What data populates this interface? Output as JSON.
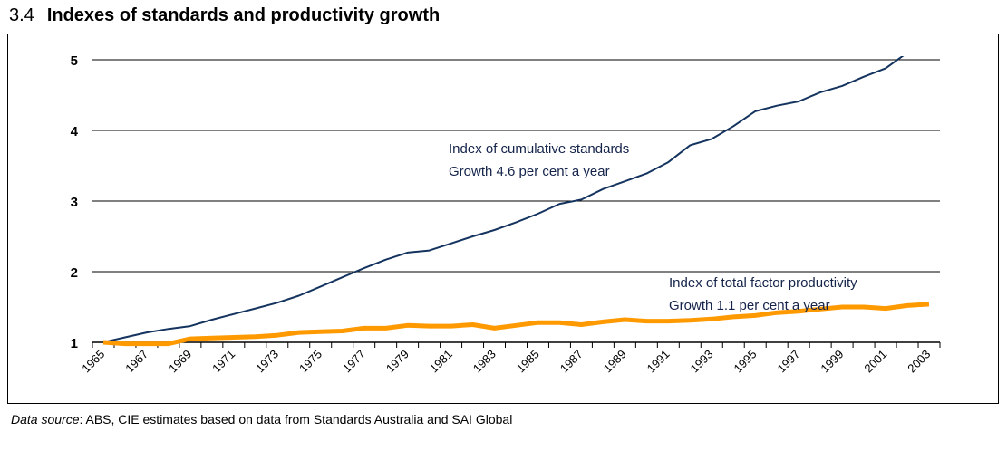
{
  "title": {
    "number": "3.4",
    "text": "Indexes of standards and productivity growth"
  },
  "source": {
    "label": "Data source",
    "text": ": ABS, CIE estimates based on data from Standards Australia and SAI Global"
  },
  "chart_data": {
    "type": "line",
    "ylim": [
      1,
      5
    ],
    "yticks": [
      "1",
      "2",
      "3",
      "4",
      "5"
    ],
    "grid": "horizontal",
    "x": [
      1965,
      1966,
      1967,
      1968,
      1969,
      1970,
      1971,
      1972,
      1973,
      1974,
      1975,
      1976,
      1977,
      1978,
      1979,
      1980,
      1981,
      1982,
      1983,
      1984,
      1985,
      1986,
      1987,
      1988,
      1989,
      1990,
      1991,
      1992,
      1993,
      1994,
      1995,
      1996,
      1997,
      1998,
      1999,
      2000,
      2001,
      2002,
      2003
    ],
    "xtick_labels": [
      "1965",
      "1967",
      "1969",
      "1971",
      "1973",
      "1975",
      "1977",
      "1979",
      "1981",
      "1983",
      "1985",
      "1987",
      "1989",
      "1991",
      "1993",
      "1995",
      "1997",
      "1999",
      "2001",
      "2003"
    ],
    "series": [
      {
        "color": "#14345f",
        "values": [
          1.0,
          1.07,
          1.14,
          1.19,
          1.23,
          1.32,
          1.4,
          1.48,
          1.56,
          1.66,
          1.79,
          1.92,
          2.05,
          2.17,
          2.27,
          2.3,
          2.4,
          2.5,
          2.59,
          2.7,
          2.82,
          2.96,
          3.02,
          3.17,
          3.28,
          3.39,
          3.55,
          3.79,
          3.88,
          4.06,
          4.27,
          4.35,
          4.41,
          4.54,
          4.63,
          4.76,
          4.88,
          5.1,
          null
        ]
      },
      {
        "color": "#ff9900",
        "values": [
          1.0,
          0.98,
          0.98,
          0.98,
          1.05,
          1.06,
          1.07,
          1.08,
          1.1,
          1.14,
          1.15,
          1.16,
          1.2,
          1.2,
          1.24,
          1.23,
          1.23,
          1.25,
          1.2,
          1.24,
          1.28,
          1.28,
          1.25,
          1.29,
          1.32,
          1.3,
          1.3,
          1.31,
          1.33,
          1.36,
          1.38,
          1.42,
          1.44,
          1.47,
          1.5,
          1.5,
          1.48,
          1.52,
          1.54
        ]
      }
    ],
    "annotations": [
      {
        "lines": [
          "Index of cumulative standards",
          "Growth 4.6 per cent a year"
        ]
      },
      {
        "lines": [
          "Index of total factor productivity",
          "Growth 1.1 per cent a year"
        ]
      }
    ]
  }
}
